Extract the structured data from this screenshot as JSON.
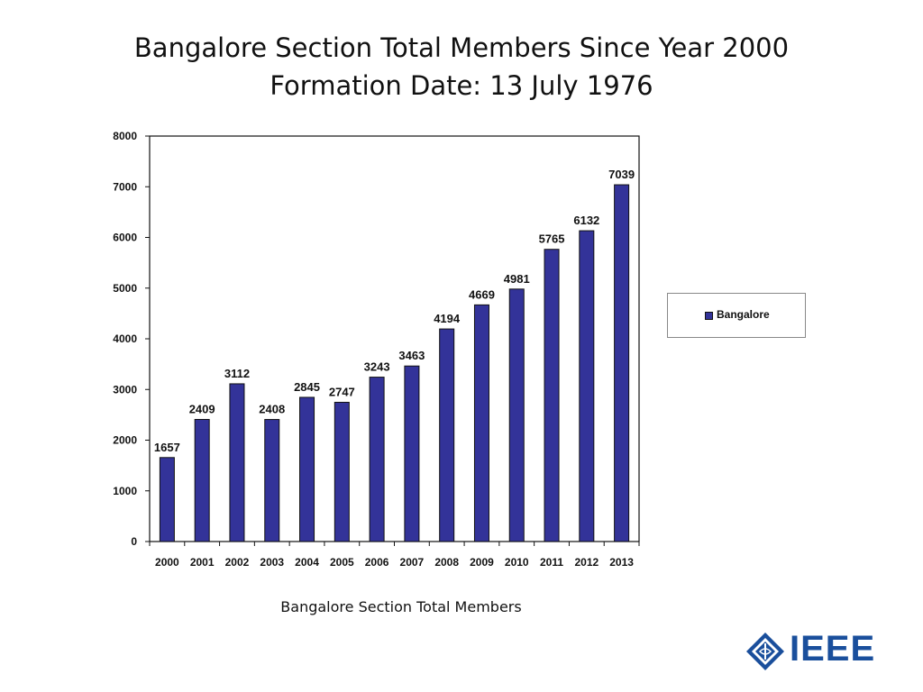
{
  "slide": {
    "title_line1": "Bangalore Section Total Members Since Year 2000",
    "title_line2": "Formation Date: 13 July 1976",
    "caption": "Bangalore Section Total Members",
    "logo_text": "IEEE"
  },
  "colors": {
    "bar": "#333399",
    "axis": "#111111"
  },
  "chart_data": {
    "type": "bar",
    "categories": [
      "2000",
      "2001",
      "2002",
      "2003",
      "2004",
      "2005",
      "2006",
      "2007",
      "2008",
      "2009",
      "2010",
      "2011",
      "2012",
      "2013"
    ],
    "series": [
      {
        "name": "Bangalore",
        "values": [
          1657,
          2409,
          3112,
          2408,
          2845,
          2747,
          3243,
          3463,
          4194,
          4669,
          4981,
          5765,
          6132,
          7039
        ]
      }
    ],
    "ylim": [
      0,
      8000
    ],
    "yticks": [
      0,
      1000,
      2000,
      3000,
      4000,
      5000,
      6000,
      7000,
      8000
    ],
    "data_labels": true,
    "grid": false,
    "legend_position": "right"
  }
}
